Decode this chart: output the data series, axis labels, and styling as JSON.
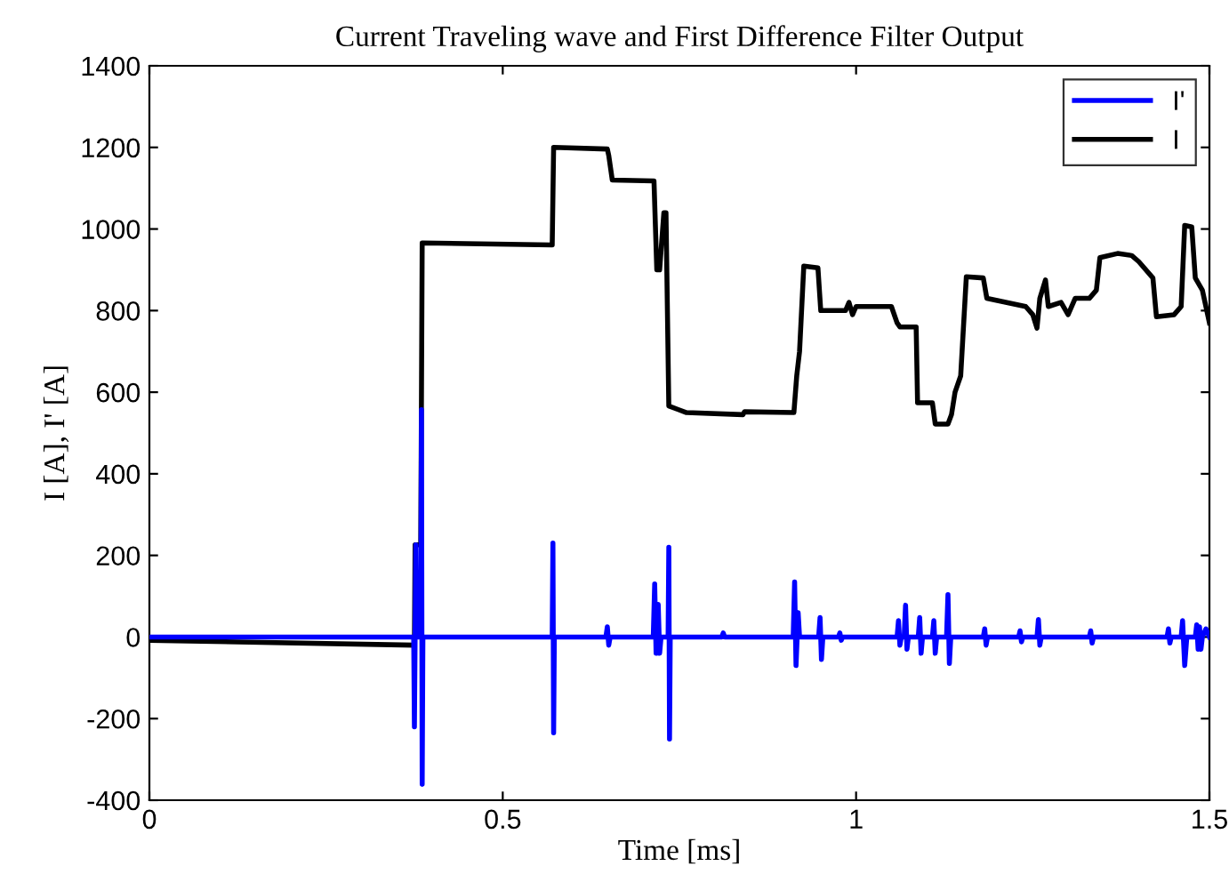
{
  "chart_data": {
    "type": "line",
    "title": "Current Traveling wave and First Difference Filter Output",
    "xlabel": "Time [ms]",
    "ylabel": "I [A], I' [A]",
    "xlim": [
      0,
      1.5
    ],
    "xticks": [
      0,
      0.5,
      1,
      1.5
    ],
    "ylim": [
      -400,
      1400
    ],
    "yticks": [
      -400,
      -200,
      0,
      200,
      400,
      600,
      800,
      1000,
      1200,
      1400
    ],
    "grid": false,
    "legend": "top right",
    "marker": "none",
    "line_style": "solid",
    "series": [
      {
        "name": "I'",
        "color": "#0000ff",
        "x": [
          0,
          0.374,
          0.375,
          0.376,
          0.377,
          0.378,
          0.384,
          0.385,
          0.386,
          0.387,
          0.57,
          0.571,
          0.572,
          0.573,
          0.646,
          0.648,
          0.65,
          0.652,
          0.713,
          0.715,
          0.717,
          0.72,
          0.722,
          0.724,
          0.734,
          0.735,
          0.736,
          0.737,
          0.81,
          0.812,
          0.814,
          0.911,
          0.913,
          0.915,
          0.918,
          0.92,
          0.947,
          0.949,
          0.951,
          0.953,
          0.975,
          0.977,
          0.979,
          0.981,
          1.058,
          1.06,
          1.062,
          1.064,
          1.068,
          1.07,
          1.072,
          1.074,
          1.088,
          1.09,
          1.092,
          1.094,
          1.108,
          1.11,
          1.112,
          1.114,
          1.128,
          1.13,
          1.132,
          1.134,
          1.18,
          1.182,
          1.184,
          1.186,
          1.23,
          1.232,
          1.234,
          1.236,
          1.256,
          1.258,
          1.26,
          1.262,
          1.33,
          1.332,
          1.334,
          1.336,
          1.44,
          1.442,
          1.444,
          1.446,
          1.46,
          1.462,
          1.465,
          1.468,
          1.48,
          1.482,
          1.484,
          1.486,
          1.488,
          1.49,
          1.495,
          1.5
        ],
        "values": [
          0,
          0,
          -220,
          0,
          226,
          0,
          0,
          557,
          -361,
          0,
          0,
          230,
          -235,
          0,
          0,
          25,
          -20,
          0,
          0,
          130,
          -40,
          80,
          -40,
          0,
          0,
          220,
          -250,
          0,
          0,
          10,
          0,
          0,
          135,
          -70,
          60,
          0,
          0,
          48,
          -55,
          0,
          0,
          10,
          -8,
          0,
          0,
          40,
          -20,
          0,
          0,
          78,
          -30,
          0,
          0,
          48,
          -40,
          0,
          0,
          40,
          -40,
          0,
          0,
          104,
          -65,
          0,
          0,
          20,
          -20,
          0,
          0,
          15,
          -12,
          0,
          0,
          43,
          -20,
          0,
          0,
          15,
          -15,
          0,
          0,
          20,
          -15,
          0,
          0,
          40,
          -70,
          0,
          0,
          30,
          -30,
          25,
          -30,
          0,
          20,
          0
        ]
      },
      {
        "name": "I",
        "color": "#000000",
        "x": [
          0,
          0.375,
          0.376,
          0.384,
          0.386,
          0.57,
          0.572,
          0.648,
          0.65,
          0.655,
          0.714,
          0.718,
          0.722,
          0.728,
          0.731,
          0.735,
          0.76,
          0.84,
          0.842,
          0.912,
          0.916,
          0.92,
          0.926,
          0.946,
          0.95,
          0.985,
          0.99,
          0.995,
          1.0,
          1.05,
          1.058,
          1.062,
          1.085,
          1.087,
          1.108,
          1.112,
          1.13,
          1.135,
          1.14,
          1.148,
          1.156,
          1.18,
          1.185,
          1.24,
          1.25,
          1.256,
          1.26,
          1.268,
          1.272,
          1.29,
          1.3,
          1.31,
          1.33,
          1.34,
          1.345,
          1.37,
          1.39,
          1.4,
          1.42,
          1.425,
          1.45,
          1.46,
          1.465,
          1.475,
          1.48,
          1.49,
          1.5
        ],
        "values": [
          -8,
          -20,
          226,
          226,
          966,
          961,
          1200,
          1196,
          1180,
          1120,
          1118,
          900,
          900,
          1040,
          1040,
          566,
          550,
          545,
          552,
          550,
          640,
          700,
          909,
          905,
          800,
          800,
          820,
          790,
          810,
          810,
          770,
          760,
          760,
          574,
          574,
          522,
          522,
          545,
          600,
          640,
          883,
          880,
          830,
          810,
          790,
          757,
          830,
          875,
          810,
          820,
          790,
          830,
          830,
          850,
          930,
          940,
          935,
          920,
          880,
          785,
          790,
          810,
          1009,
          1005,
          880,
          850,
          770
        ]
      }
    ]
  }
}
